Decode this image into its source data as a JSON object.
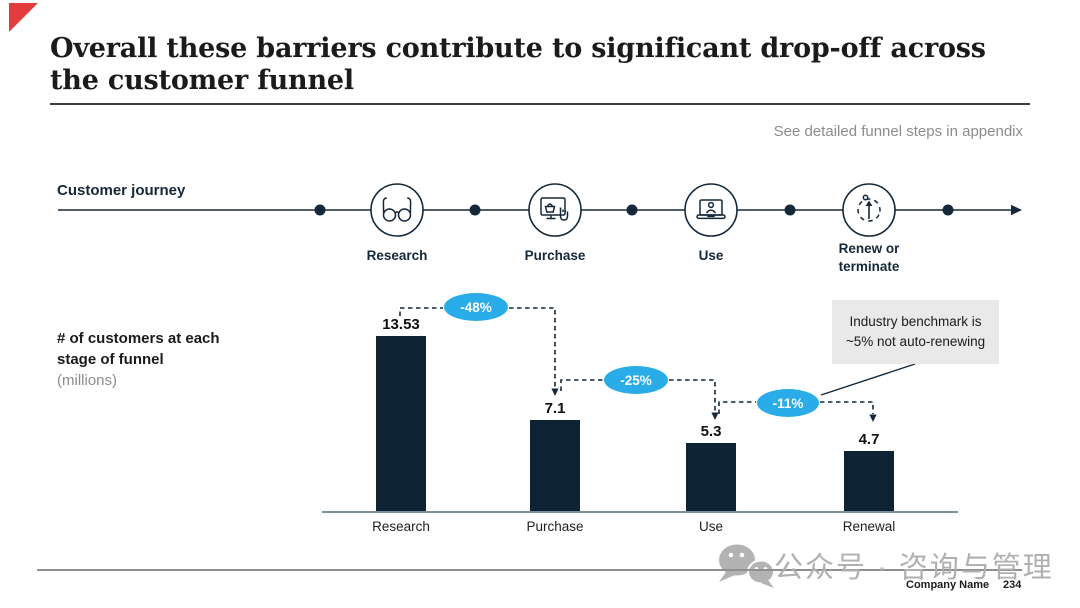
{
  "slide": {
    "title": "Overall these barriers contribute to significant drop-off across the customer funnel",
    "appendix_note": "See detailed funnel steps in appendix",
    "footer": {
      "company": "Company Name",
      "page": "234",
      "watermark": "公众号 · 咨询与管理"
    }
  },
  "journey": {
    "label": "Customer journey",
    "stages": [
      {
        "label": "Research",
        "icon": "glasses-icon"
      },
      {
        "label": "Purchase",
        "icon": "screen-basket-hand-icon"
      },
      {
        "label": "Use",
        "icon": "laptop-user-icon"
      },
      {
        "label": "Renew or terminate",
        "icon": "renew-arrow-icon"
      }
    ]
  },
  "chart": {
    "label_bold": "# of customers at each stage of funnel",
    "label_unit": "(millions)",
    "callout": "Industry benchmark is ~5% not auto-renewing"
  },
  "chart_data": {
    "type": "bar",
    "title": "# of customers at each stage of funnel (millions)",
    "categories": [
      "Research",
      "Purchase",
      "Use",
      "Renewal"
    ],
    "values": [
      13.53,
      7.1,
      5.3,
      4.7
    ],
    "value_labels": [
      "13.53",
      "7.1",
      "5.3",
      "4.7"
    ],
    "drop_annotations": [
      {
        "from": "Research",
        "to": "Purchase",
        "label": "-48%"
      },
      {
        "from": "Purchase",
        "to": "Use",
        "label": "-25%"
      },
      {
        "from": "Use",
        "to": "Renewal",
        "label": "-11%"
      }
    ],
    "annotation": "Industry benchmark is ~5% not auto-renewing",
    "ylim": [
      0,
      14
    ],
    "grid": false,
    "bar_color": "#0d2233",
    "drop_bubble_color": "#29ace8"
  },
  "colors": {
    "navy": "#14283a",
    "bar": "#0d2233",
    "accent_blue": "#29ace8",
    "gray_text": "#8c8c8c",
    "callout_bg": "#e9e9e9",
    "corner_red": "#e23c3c"
  }
}
